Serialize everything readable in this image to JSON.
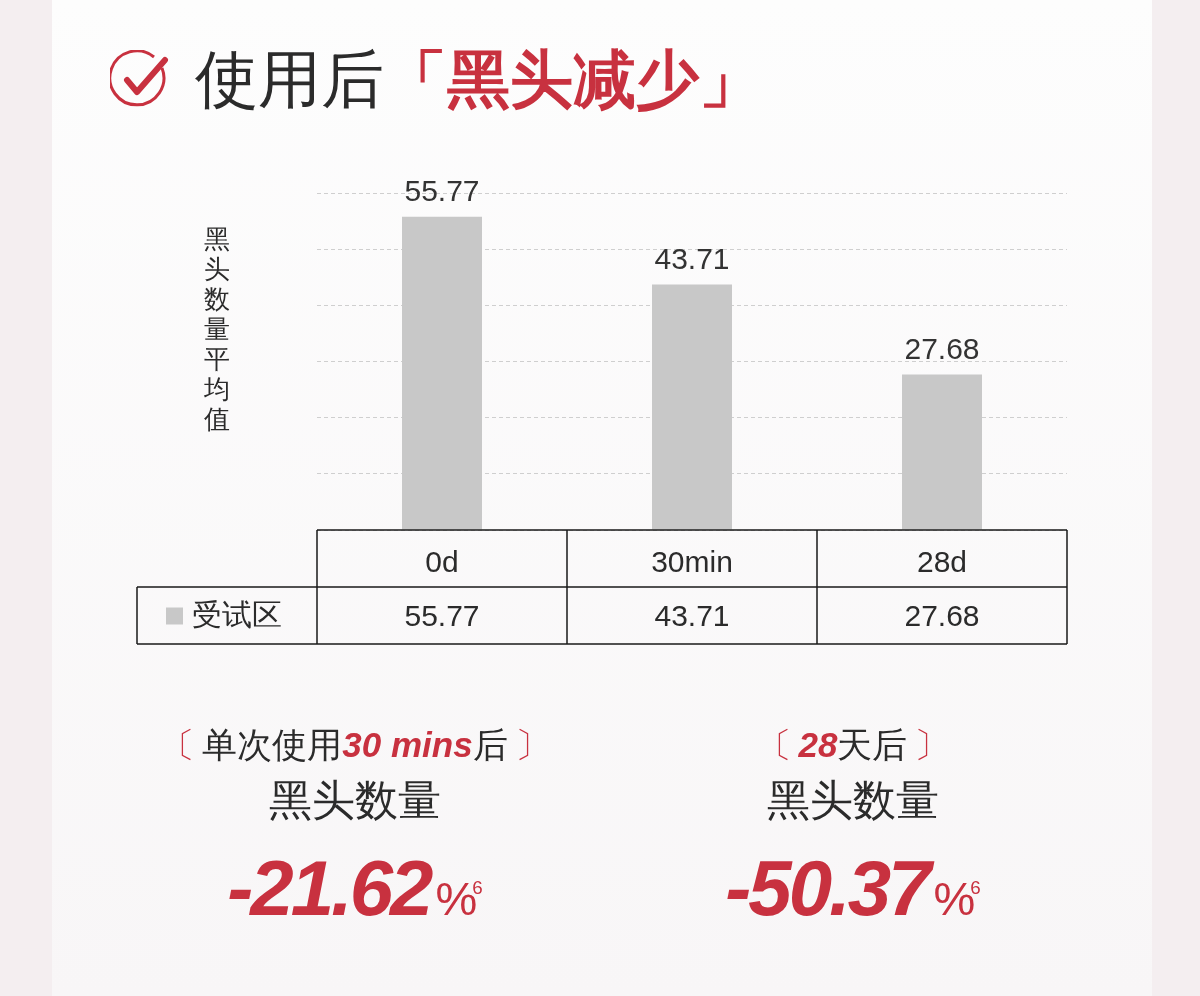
{
  "chart_data": {
    "type": "bar",
    "title": "使用后「黑头减少」",
    "ylabel": "黑头数量平均值",
    "categories": [
      "0d",
      "30min",
      "28d"
    ],
    "series": [
      {
        "name": "受试区",
        "color": "#c8c8c8",
        "values": [
          55.77,
          43.71,
          27.68
        ]
      }
    ],
    "ylim": [
      0,
      60
    ],
    "yticks": [
      {
        "value": 0,
        "label": null
      },
      {
        "value": 10,
        "label": null
      },
      {
        "value": 20,
        "label": null
      },
      {
        "value": 30,
        "label": null
      },
      {
        "value": 40,
        "label": null
      },
      {
        "value": 50,
        "label": null
      },
      {
        "value": 60,
        "label": null
      }
    ],
    "tick_labels": "x",
    "grid": "y",
    "legend": "bottom left",
    "data_labels": true,
    "annotations": [
      {
        "text": "55.77",
        "x": "0d",
        "y": 55.77
      },
      {
        "text": "43.71",
        "x": "30min",
        "y": 43.71
      },
      {
        "text": "27.68",
        "x": "28d",
        "y": 27.68
      },
      "〔单次使用30 mins后〕",
      "黑头数量",
      "-21.62%$^{6}$",
      "〔28天后〕",
      "黑头数量",
      "-50.37%$^{6}$"
    ]
  }
}
